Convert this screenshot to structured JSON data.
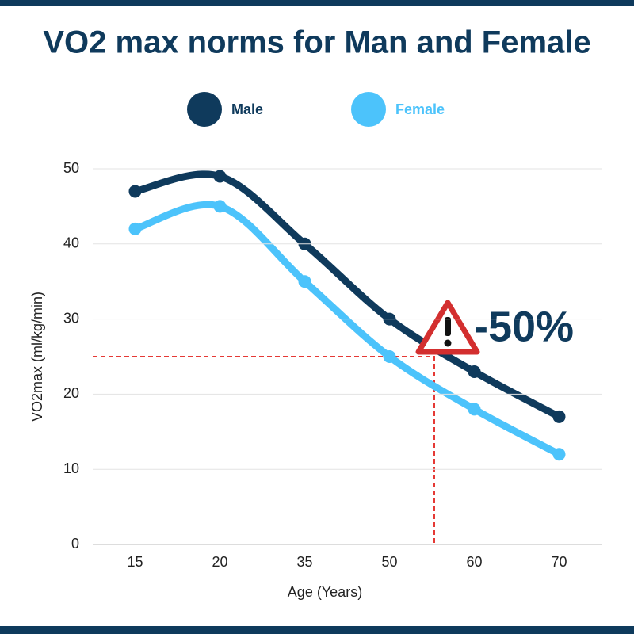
{
  "chart_data": {
    "type": "line",
    "title": "VO2 max norms for Man and Female",
    "x_label": "Age (Years)",
    "y_label": "VO2max (ml/kg/min)",
    "categories": [
      "15",
      "20",
      "35",
      "50",
      "60",
      "70"
    ],
    "series": [
      {
        "name": "Male",
        "color": "#0f3a5c",
        "values": [
          47,
          49,
          40,
          30,
          23,
          17
        ]
      },
      {
        "name": "Female",
        "color": "#4cc3fb",
        "values": [
          42,
          45,
          35,
          25,
          18,
          12
        ]
      }
    ],
    "ylim": [
      0,
      50
    ],
    "yticks": [
      0,
      10,
      20,
      30,
      40,
      50
    ],
    "grid": true,
    "reference_line": {
      "y": 25,
      "color": "#e53935"
    },
    "annotation": "-50%"
  }
}
